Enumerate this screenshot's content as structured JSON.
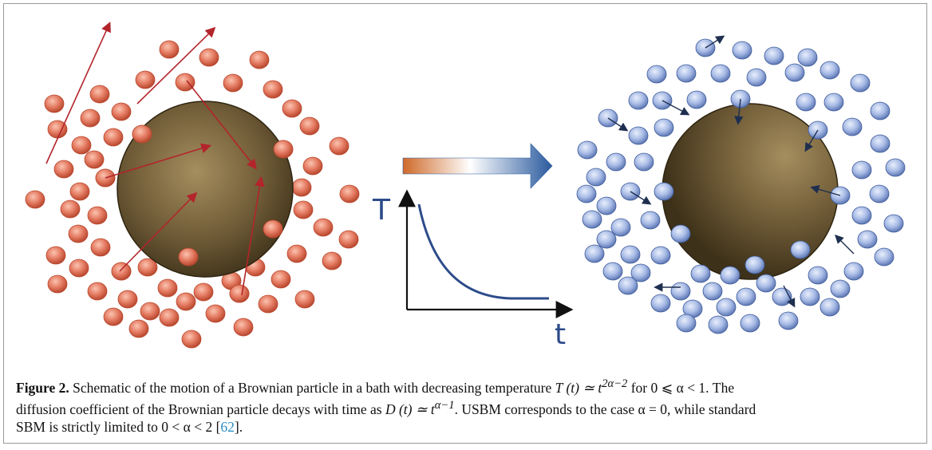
{
  "figure": {
    "axis_y_label": "T",
    "axis_x_label": "t",
    "colors": {
      "hot_particle": "#e0735a",
      "cold_particle": "#9fb5e3",
      "arrow_hot": "#b3242b",
      "arrow_cold": "#1f2f4f",
      "gradient_start": "#cf6a2a",
      "gradient_mid": "#ffffff",
      "gradient_end": "#2a5a9e",
      "curve": "#2c4b8a"
    }
  },
  "caption": {
    "label": "Figure 2.",
    "line1_text": " Schematic of the motion of a Brownian particle in a bath with decreasing temperature ",
    "line1_math": "T (t) ≃ t",
    "line1_exp": "2α−2",
    "line1_tail": " for 0 ⩽ α < 1. The",
    "line2_text": "diffusion coefficient of the Brownian particle decays with time as ",
    "line2_math": "D (t) ≃ t",
    "line2_exp": "α−1",
    "line2_tail": ". USBM corresponds to the case α = 0, while standard",
    "line3_text": "SBM is strictly limited to 0 < α < 2 [",
    "line3_cite": "62",
    "line3_end": "]."
  }
}
